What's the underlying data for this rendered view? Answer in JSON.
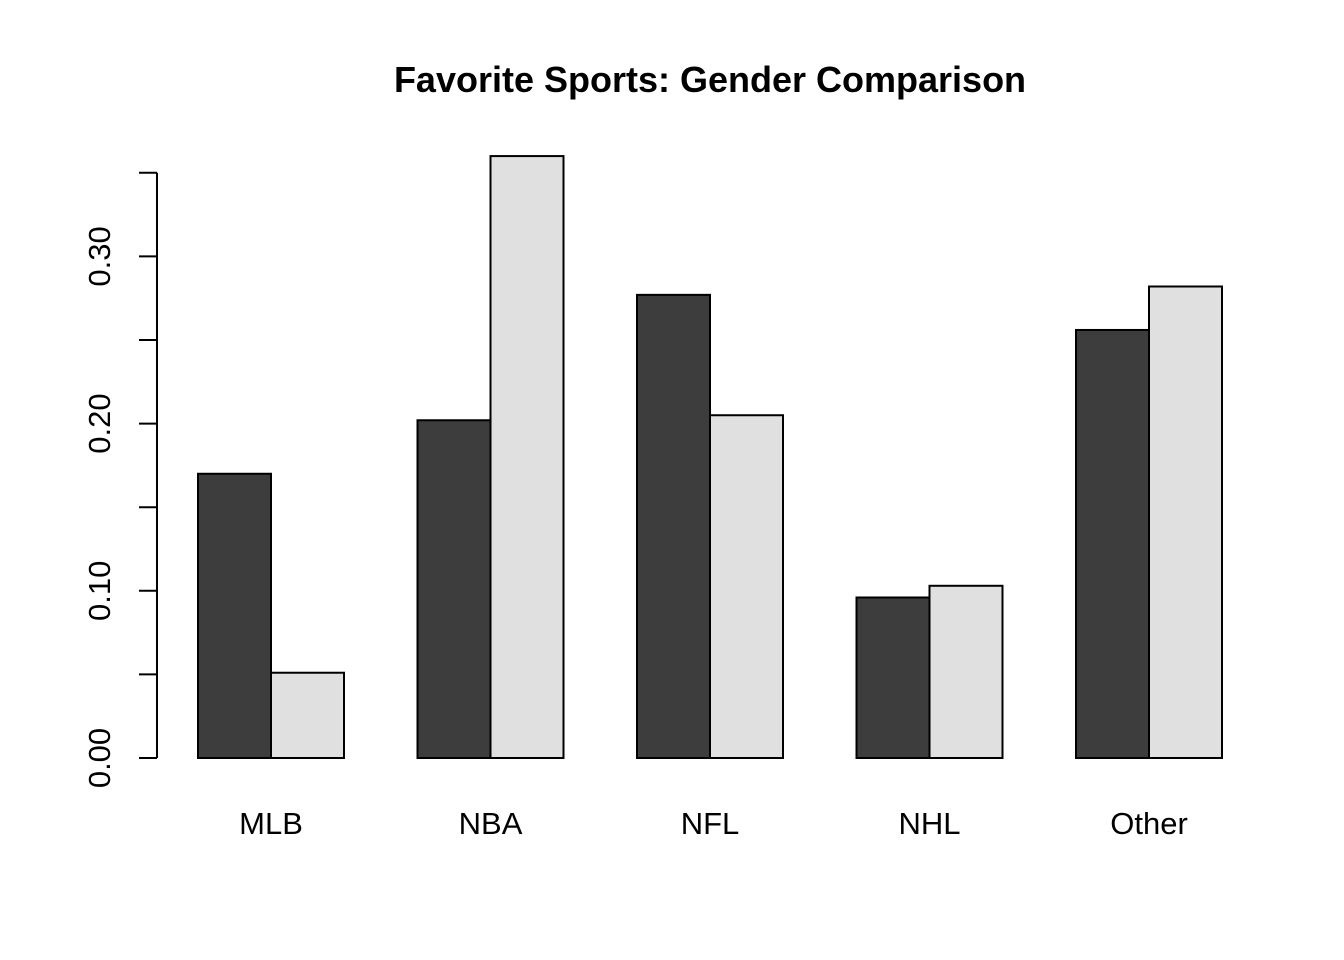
{
  "chart_data": {
    "type": "bar",
    "title": "Favorite Sports: Gender Comparison",
    "xlabel": "",
    "ylabel": "",
    "categories": [
      "MLB",
      "NBA",
      "NFL",
      "NHL",
      "Other"
    ],
    "series": [
      {
        "color": "#3d3d3d",
        "values": [
          0.17,
          0.202,
          0.277,
          0.096,
          0.256
        ]
      },
      {
        "color": "#e0e0e0",
        "values": [
          0.051,
          0.36,
          0.205,
          0.103,
          0.282
        ]
      }
    ],
    "ylim": [
      0,
      0.35
    ],
    "y_ticks": [
      0.0,
      0.05,
      0.1,
      0.15,
      0.2,
      0.25,
      0.3,
      0.35
    ],
    "y_tick_labels": [
      "0.00",
      "",
      "0.10",
      "",
      "0.20",
      "",
      "0.30",
      ""
    ],
    "grid": false,
    "legend": "none"
  }
}
